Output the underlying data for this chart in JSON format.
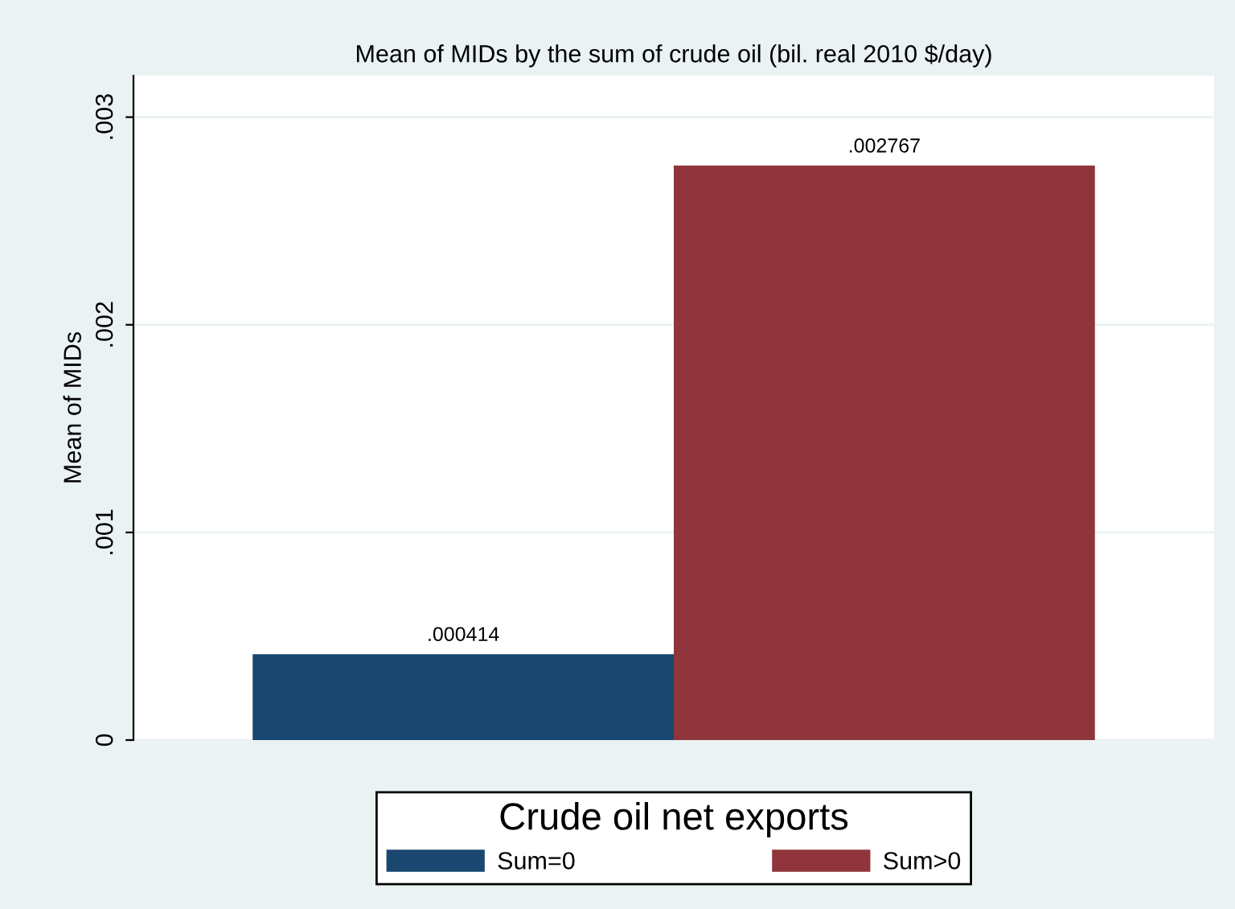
{
  "chart_data": {
    "type": "bar",
    "title": "Mean of MIDs by the sum of crude oil (bil. real 2010 $/day)",
    "ylabel": "Mean of MIDs",
    "legend_title": "Crude oil net exports",
    "categories": [
      null
    ],
    "series": [
      {
        "name": "Sum=0",
        "color": "#1a476f",
        "values": [
          0.000414
        ],
        "value_labels": [
          ".000414"
        ]
      },
      {
        "name": "Sum>0",
        "color": "#90353b",
        "values": [
          0.002767
        ],
        "value_labels": [
          ".002767"
        ]
      }
    ],
    "ylim": [
      0,
      0.0032
    ],
    "yticks": [
      {
        "value": 0,
        "label": "0"
      },
      {
        "value": 0.001,
        "label": ".001"
      },
      {
        "value": 0.002,
        "label": ".002"
      },
      {
        "value": 0.003,
        "label": ".003"
      }
    ],
    "grid": "y",
    "legend": "bottom"
  }
}
